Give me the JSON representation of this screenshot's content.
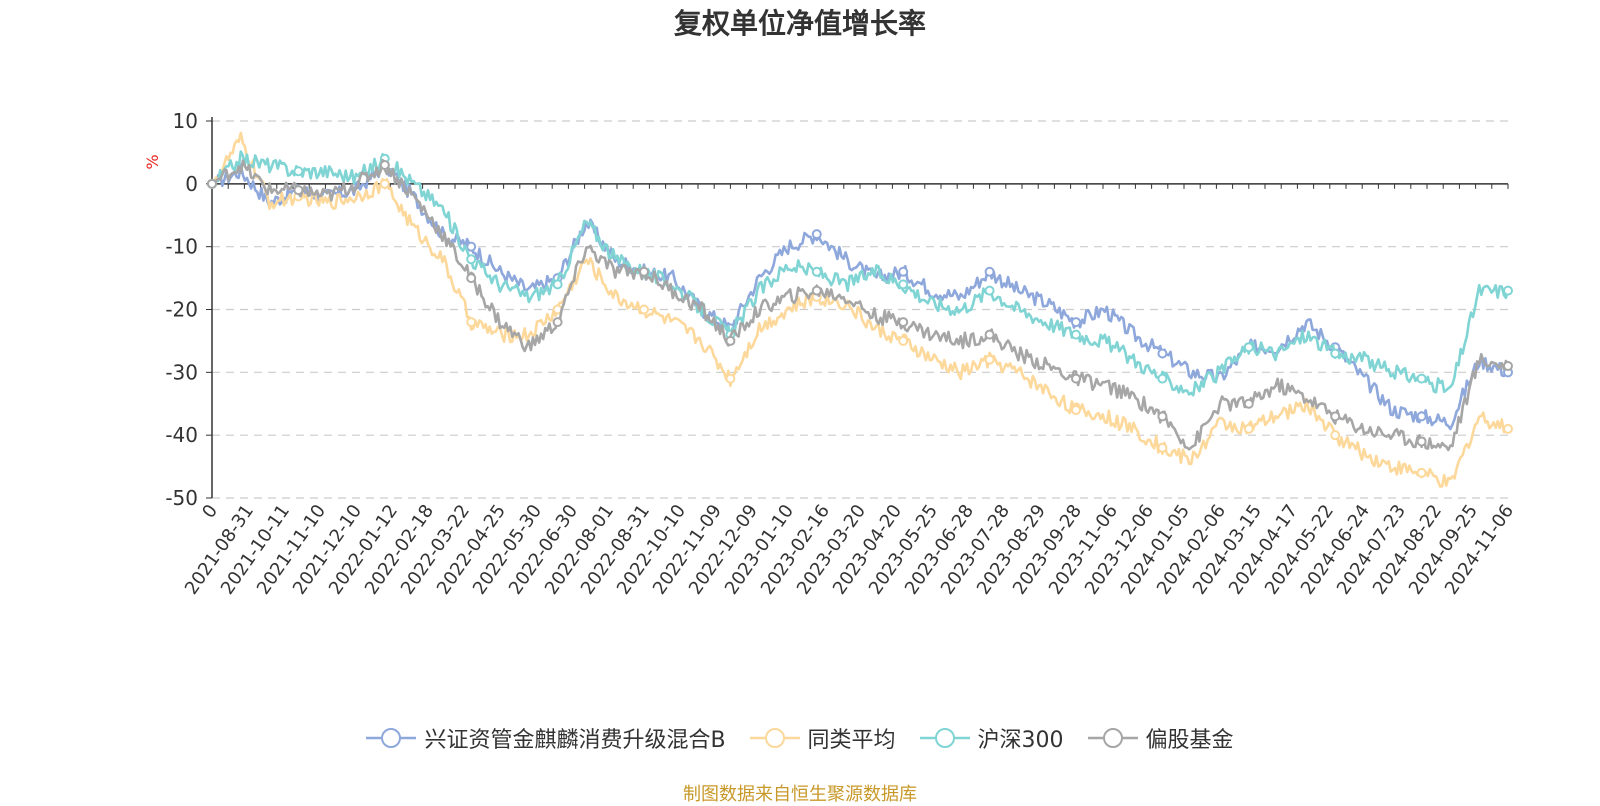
{
  "page": {
    "title": "复权单位净值增长率",
    "source": "制图数据来自恒生聚源数据库"
  },
  "legend": [
    {
      "label": "兴证资管金麒麟消费升级混合B",
      "color": "#8fa8dc"
    },
    {
      "label": "同类平均",
      "color": "#fdd89b"
    },
    {
      "label": "沪深300",
      "color": "#80d4d4"
    },
    {
      "label": "偏股基金",
      "color": "#a6a6a6"
    }
  ],
  "chart_data": {
    "type": "line",
    "title": "复权单位净值增长率",
    "ylabel": "%",
    "ylim": [
      -50,
      10
    ],
    "yticks": [
      10,
      0,
      -10,
      -20,
      -30,
      -40,
      -50
    ],
    "grid": true,
    "legend_position": "bottom",
    "x_tick_labels": [
      "0",
      "2021-08-31",
      "2021-10-11",
      "2021-11-10",
      "2021-12-10",
      "2022-01-12",
      "2022-02-18",
      "2022-03-22",
      "2022-04-25",
      "2022-05-30",
      "2022-06-30",
      "2022-08-01",
      "2022-08-31",
      "2022-10-10",
      "2022-11-09",
      "2022-12-09",
      "2023-01-10",
      "2023-02-16",
      "2023-03-20",
      "2023-04-20",
      "2023-05-25",
      "2023-06-28",
      "2023-07-28",
      "2023-08-29",
      "2023-09-28",
      "2023-11-06",
      "2023-12-06",
      "2024-01-05",
      "2024-02-06",
      "2024-03-15",
      "2024-04-17",
      "2024-05-22",
      "2024-06-24",
      "2024-07-23",
      "2024-08-22",
      "2024-09-25",
      "2024-11-06"
    ],
    "series": [
      {
        "name": "兴证资管金麒麟消费升级混合B",
        "color": "#8fa8dc",
        "values": [
          0,
          2,
          -3,
          -1,
          -2,
          -1,
          3,
          -2,
          -8,
          -10,
          -14,
          -17,
          -15,
          -6,
          -12,
          -14,
          -15,
          -20,
          -23,
          -15,
          -10,
          -8,
          -12,
          -15,
          -14,
          -17,
          -18,
          -14,
          -17,
          -19,
          -22,
          -20,
          -24,
          -27,
          -30,
          -31,
          -26,
          -26,
          -22,
          -26,
          -31,
          -36,
          -37,
          -38,
          -28,
          -30
        ]
      },
      {
        "name": "同类平均",
        "color": "#fdd89b",
        "values": [
          0,
          7,
          -3,
          -2,
          -3,
          -2,
          0,
          -7,
          -12,
          -22,
          -24,
          -24,
          -20,
          -12,
          -18,
          -20,
          -22,
          -25,
          -31,
          -23,
          -20,
          -18,
          -19,
          -23,
          -25,
          -28,
          -30,
          -28,
          -30,
          -33,
          -36,
          -37,
          -39,
          -42,
          -44,
          -38,
          -39,
          -37,
          -35,
          -40,
          -43,
          -45,
          -46,
          -48,
          -37,
          -39
        ]
      },
      {
        "name": "沪深300",
        "color": "#80d4d4",
        "values": [
          0,
          4,
          3,
          2,
          2,
          1,
          4,
          0,
          -4,
          -12,
          -16,
          -18,
          -16,
          -6,
          -12,
          -14,
          -16,
          -20,
          -24,
          -17,
          -13,
          -14,
          -16,
          -14,
          -16,
          -19,
          -20,
          -17,
          -20,
          -22,
          -24,
          -25,
          -28,
          -31,
          -33,
          -30,
          -26,
          -27,
          -24,
          -27,
          -28,
          -30,
          -31,
          -33,
          -17,
          -17
        ]
      },
      {
        "name": "偏股基金",
        "color": "#a6a6a6",
        "values": [
          0,
          3,
          -1,
          -1,
          -2,
          0,
          3,
          -2,
          -8,
          -15,
          -22,
          -26,
          -22,
          -10,
          -14,
          -14,
          -17,
          -20,
          -25,
          -20,
          -18,
          -17,
          -18,
          -21,
          -22,
          -24,
          -25,
          -24,
          -27,
          -29,
          -31,
          -32,
          -34,
          -37,
          -42,
          -35,
          -35,
          -32,
          -34,
          -37,
          -39,
          -40,
          -41,
          -42,
          -28,
          -29
        ]
      }
    ]
  }
}
